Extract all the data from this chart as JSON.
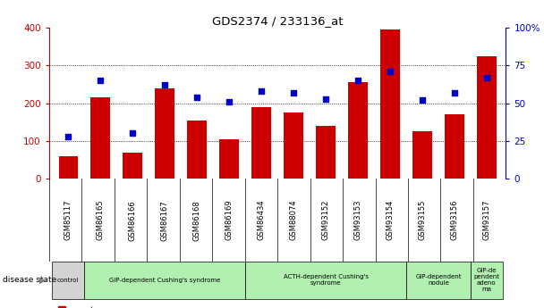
{
  "title": "GDS2374 / 233136_at",
  "samples": [
    "GSM85117",
    "GSM86165",
    "GSM86166",
    "GSM86167",
    "GSM86168",
    "GSM86169",
    "GSM86434",
    "GSM88074",
    "GSM93152",
    "GSM93153",
    "GSM93154",
    "GSM93155",
    "GSM93156",
    "GSM93157"
  ],
  "counts": [
    60,
    215,
    68,
    240,
    155,
    105,
    190,
    175,
    140,
    255,
    395,
    125,
    170,
    325
  ],
  "percentiles": [
    28,
    65,
    30,
    62,
    54,
    51,
    58,
    57,
    53,
    65,
    71,
    52,
    57,
    67
  ],
  "disease_groups": [
    {
      "label": "control",
      "start": 0,
      "end": 1,
      "color": "#d3d3d3"
    },
    {
      "label": "GIP-dependent Cushing's syndrome",
      "start": 1,
      "end": 6,
      "color": "#b2f0b2"
    },
    {
      "label": "ACTH-dependent Cushing's\nsyndrome",
      "start": 6,
      "end": 11,
      "color": "#b2f0b2"
    },
    {
      "label": "GIP-dependent\nnodule",
      "start": 11,
      "end": 13,
      "color": "#b2f0b2"
    },
    {
      "label": "GIP-de\npendent\nadeno\nma",
      "start": 13,
      "end": 14,
      "color": "#b2f0b2"
    }
  ],
  "bar_color": "#cc0000",
  "dot_color": "#0000cc",
  "left_ylim": [
    0,
    400
  ],
  "right_ylim": [
    0,
    100
  ],
  "left_yticks": [
    0,
    100,
    200,
    300,
    400
  ],
  "right_yticks": [
    0,
    25,
    50,
    75,
    100
  ],
  "right_yticklabels": [
    "0",
    "25",
    "50",
    "75",
    "100%"
  ],
  "left_ycolor": "#cc0000",
  "right_ycolor": "#0000cc",
  "grid_color": "#000000",
  "background_color": "#ffffff",
  "tick_bg_color": "#c0c0c0"
}
